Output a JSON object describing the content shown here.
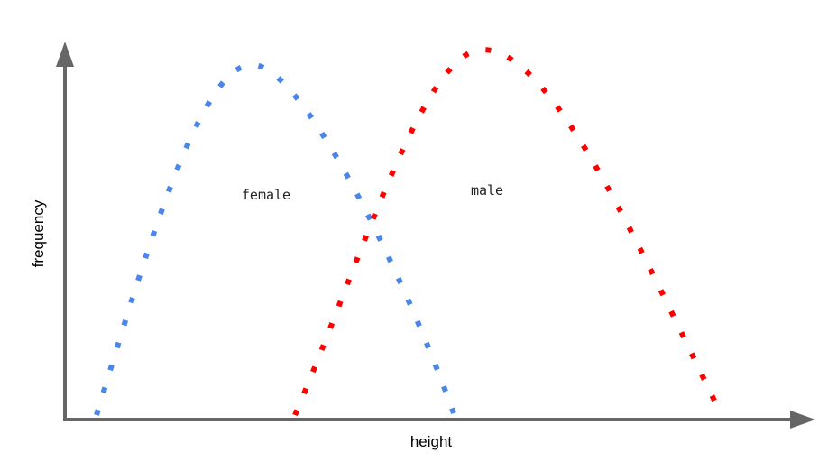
{
  "diagram": {
    "x_axis_label": "height",
    "y_axis_label": "frequency",
    "axis_color": "#666666",
    "curves": [
      {
        "label": "female",
        "color": "#4a86e8"
      },
      {
        "label": "male",
        "color": "#ff0000"
      }
    ]
  }
}
